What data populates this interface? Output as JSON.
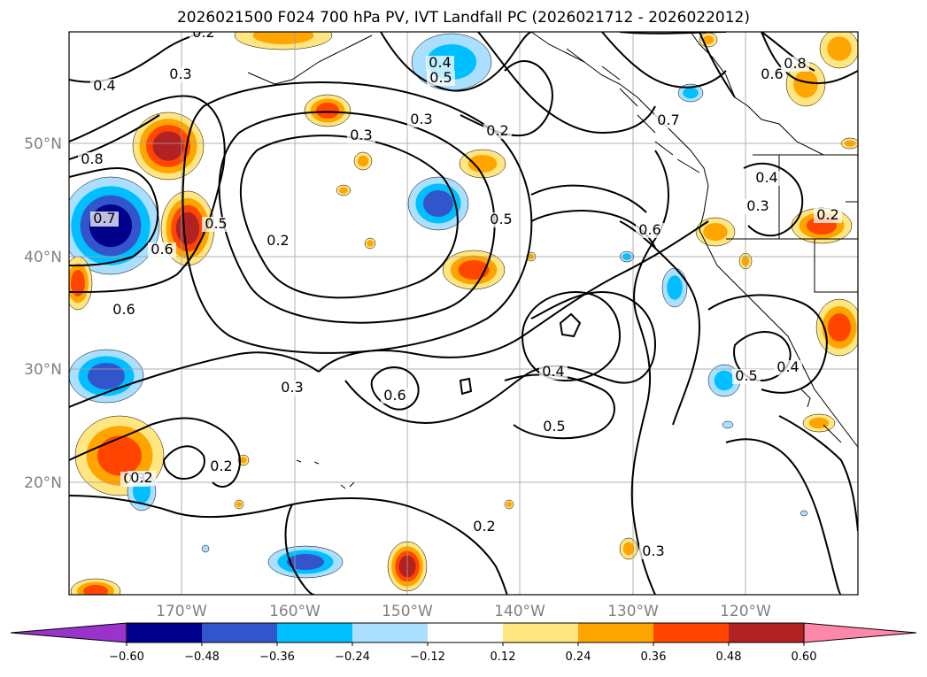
{
  "title": "2026021500 F024 700 hPa PV, IVT Landfall PC (2026021712 - 2026022012)",
  "lat_labels": [
    "50°N",
    "40°N",
    "30°N",
    "20°N"
  ],
  "lon_labels": [
    "170°W",
    "160°W",
    "150°W",
    "140°W",
    "130°W",
    "120°W"
  ],
  "contour_labels": [
    "0.2",
    "0.4",
    "0.3",
    "0.5",
    "0.4",
    "0.3",
    "0.6",
    "0.7",
    "0.8",
    "0.8",
    "0.3",
    "0.3",
    "0.2",
    "0.7",
    "0.5",
    "0.2",
    "0.5",
    "0.6",
    "0.6",
    "0.4",
    "0.3",
    "0.2",
    "0.6",
    "0.3",
    "0.6",
    "0.4",
    "0.5",
    "0.5",
    "0.4",
    "0.2",
    "0.3",
    "0.2",
    "0.2"
  ],
  "colorbar": {
    "ticks": [
      "−0.60",
      "−0.48",
      "−0.36",
      "−0.24",
      "−0.12",
      "0.12",
      "0.24",
      "0.36",
      "0.48",
      "0.60"
    ],
    "colors": [
      "#9933cc",
      "#00008b",
      "#3355cc",
      "#00bfff",
      "#aadfff",
      "#ffffff",
      "#ffe680",
      "#ffa500",
      "#ff4500",
      "#b22222",
      "#ff88aa"
    ]
  },
  "fill_colors": {
    "pos1": "#ffe680",
    "pos2": "#ffa500",
    "pos3": "#ff4500",
    "pos4": "#b22222",
    "neg1": "#aadfff",
    "neg2": "#00bfff",
    "neg3": "#3355cc",
    "neg4": "#00008b"
  }
}
